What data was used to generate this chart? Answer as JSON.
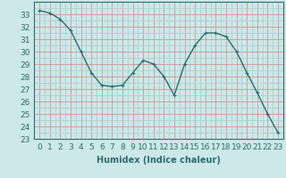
{
  "x": [
    0,
    1,
    2,
    3,
    4,
    5,
    6,
    7,
    8,
    9,
    10,
    11,
    12,
    13,
    14,
    15,
    16,
    17,
    18,
    19,
    20,
    21,
    22,
    23
  ],
  "y": [
    33.3,
    33.1,
    32.6,
    31.7,
    30.0,
    28.3,
    27.3,
    27.2,
    27.3,
    28.3,
    29.3,
    29.0,
    28.0,
    26.5,
    29.0,
    30.5,
    31.5,
    31.5,
    31.2,
    30.0,
    28.3,
    26.7,
    25.0,
    23.5
  ],
  "title": "",
  "xlabel": "Humidex (Indice chaleur)",
  "ylabel": "",
  "ylim": [
    23,
    34
  ],
  "xlim": [
    -0.5,
    23.5
  ],
  "yticks": [
    23,
    24,
    25,
    26,
    27,
    28,
    29,
    30,
    31,
    32,
    33
  ],
  "xticks": [
    0,
    1,
    2,
    3,
    4,
    5,
    6,
    7,
    8,
    9,
    10,
    11,
    12,
    13,
    14,
    15,
    16,
    17,
    18,
    19,
    20,
    21,
    22,
    23
  ],
  "line_color": "#2d6e6e",
  "marker": "+",
  "bg_color": "#cce8e8",
  "grid_minor_color": "#aacccc",
  "grid_major_color": "#cc8888",
  "label_fontsize": 7,
  "tick_fontsize": 6.5
}
